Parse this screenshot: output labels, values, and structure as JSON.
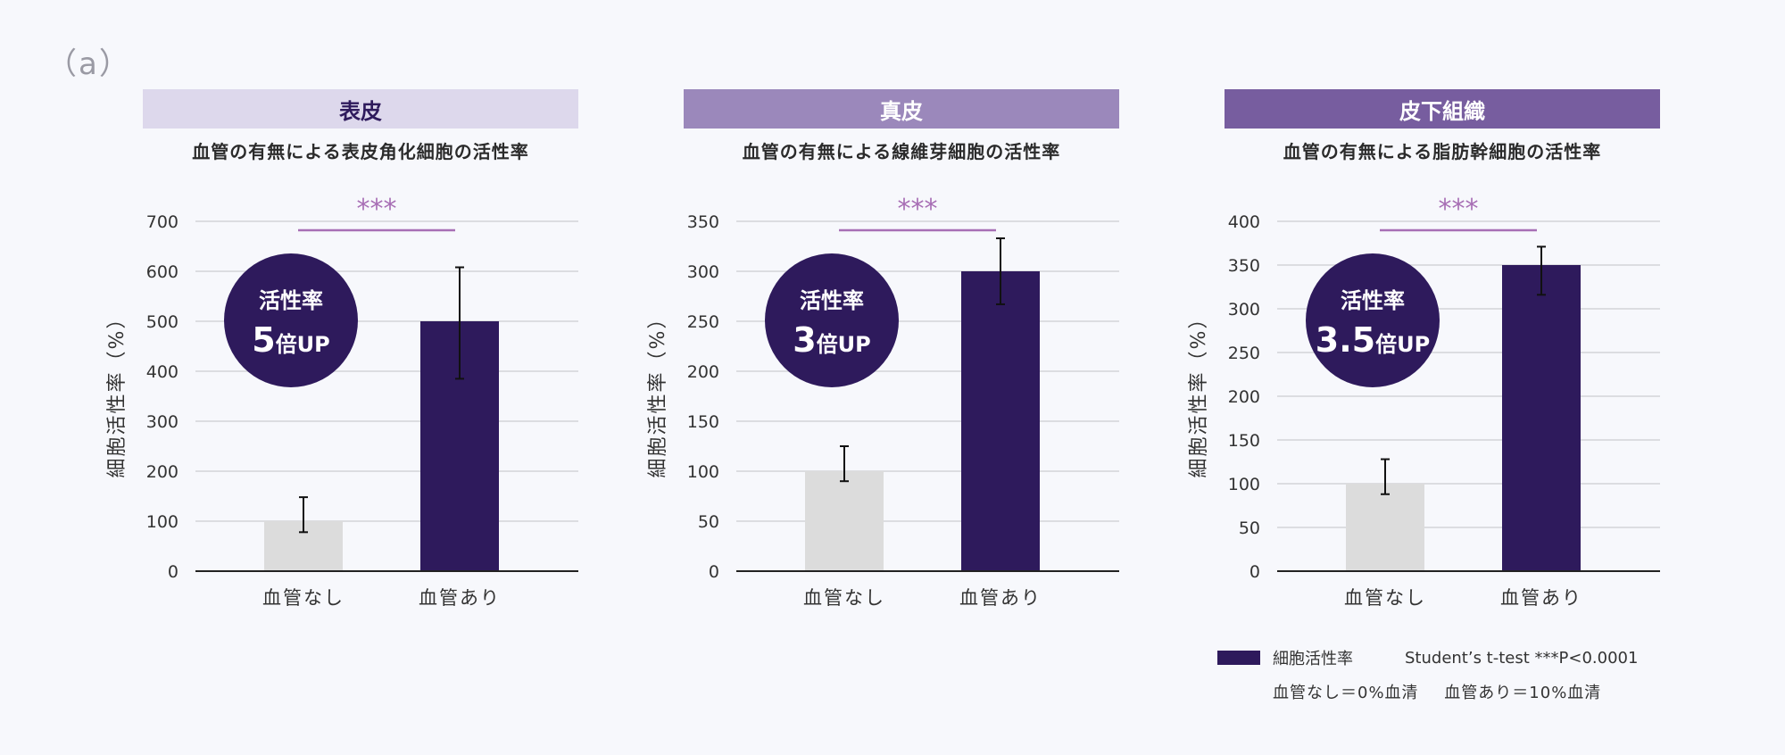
{
  "figure_label": "（a）",
  "colors": {
    "bar_control": "#dcdcdc",
    "bar_vessel": "#2e1a5c",
    "badge": "#2e1a5c",
    "significance": "#a86fb5",
    "grid": "#d4d4d8",
    "axis": "#222222"
  },
  "y_axis_label": "細胞活性率（%）",
  "significance": "***",
  "badge_label": "活性率",
  "badge_unit": "倍UP",
  "chart_data": [
    {
      "type": "bar",
      "header": "表皮",
      "header_bg": "#ddd8ec",
      "header_color": "#2e1a5c",
      "title": "血管の有無による表皮角化細胞の活性率",
      "categories": [
        "血管なし",
        "血管あり"
      ],
      "values": [
        100,
        500
      ],
      "error_low": [
        78,
        385
      ],
      "error_high": [
        148,
        608
      ],
      "ylim": [
        0,
        700
      ],
      "yticks": [
        0,
        100,
        200,
        300,
        400,
        500,
        600,
        700
      ],
      "ylabel": "細胞活性率（%）",
      "fold": "5"
    },
    {
      "type": "bar",
      "header": "真皮",
      "header_bg": "#9b88bb",
      "header_color": "#ffffff",
      "title": "血管の有無による線維芽細胞の活性率",
      "categories": [
        "血管なし",
        "血管あり"
      ],
      "values": [
        100,
        300
      ],
      "error_low": [
        90,
        267
      ],
      "error_high": [
        125,
        333
      ],
      "ylim": [
        0,
        350
      ],
      "yticks": [
        0,
        50,
        100,
        150,
        200,
        250,
        300,
        350
      ],
      "ylabel": "細胞活性率（%）",
      "fold": "3"
    },
    {
      "type": "bar",
      "header": "皮下組織",
      "header_bg": "#775d9f",
      "header_color": "#ffffff",
      "title": "血管の有無による脂肪幹細胞の活性率",
      "categories": [
        "血管なし",
        "血管あり"
      ],
      "values": [
        100,
        350
      ],
      "error_low": [
        88,
        316
      ],
      "error_high": [
        128,
        371
      ],
      "ylim": [
        0,
        400
      ],
      "yticks": [
        0,
        50,
        100,
        150,
        200,
        250,
        300,
        350,
        400
      ],
      "ylabel": "細胞活性率（%）",
      "fold": "3.5"
    }
  ],
  "legend": {
    "series_label": "細胞活性率",
    "test_label": "Student’s  t-test  ***P<0.0001",
    "note_control": "血管なし＝0%血清",
    "note_vessel": "血管あり＝10%血清"
  }
}
